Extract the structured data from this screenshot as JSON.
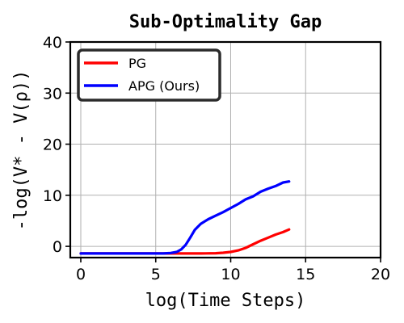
{
  "chart_data": {
    "type": "line",
    "title": "Sub-Optimality Gap",
    "xlabel": "log(Time Steps)",
    "ylabel": "-log(V* - V(ρ))",
    "xlim": [
      -0.7,
      20
    ],
    "ylim": [
      -2.2,
      40
    ],
    "x_ticks": [
      0,
      5,
      10,
      15,
      20
    ],
    "y_ticks": [
      0,
      10,
      20,
      30,
      40
    ],
    "grid": true,
    "legend_position": "top-left",
    "series": [
      {
        "name": "PG",
        "color": "#ff0000",
        "x": [
          0,
          2,
          4,
          6,
          7,
          8,
          9,
          9.5,
          10,
          10.5,
          11,
          11.5,
          12,
          12.5,
          13,
          13.5,
          13.9
        ],
        "y": [
          -1.4,
          -1.4,
          -1.4,
          -1.4,
          -1.4,
          -1.4,
          -1.35,
          -1.25,
          -1.1,
          -0.8,
          -0.3,
          0.4,
          1.1,
          1.7,
          2.3,
          2.8,
          3.3
        ]
      },
      {
        "name": "APG (Ours)",
        "color": "#0000ff",
        "x": [
          0,
          2,
          4,
          5.5,
          6,
          6.4,
          6.7,
          7,
          7.3,
          7.6,
          8,
          8.5,
          9,
          9.5,
          10,
          10.5,
          11,
          11.5,
          12,
          12.5,
          13,
          13.5,
          13.9
        ],
        "y": [
          -1.4,
          -1.4,
          -1.4,
          -1.4,
          -1.3,
          -1.1,
          -0.6,
          0.3,
          1.7,
          3.2,
          4.4,
          5.3,
          6.0,
          6.7,
          7.5,
          8.3,
          9.2,
          9.8,
          10.7,
          11.3,
          11.8,
          12.5,
          12.7
        ]
      }
    ]
  }
}
